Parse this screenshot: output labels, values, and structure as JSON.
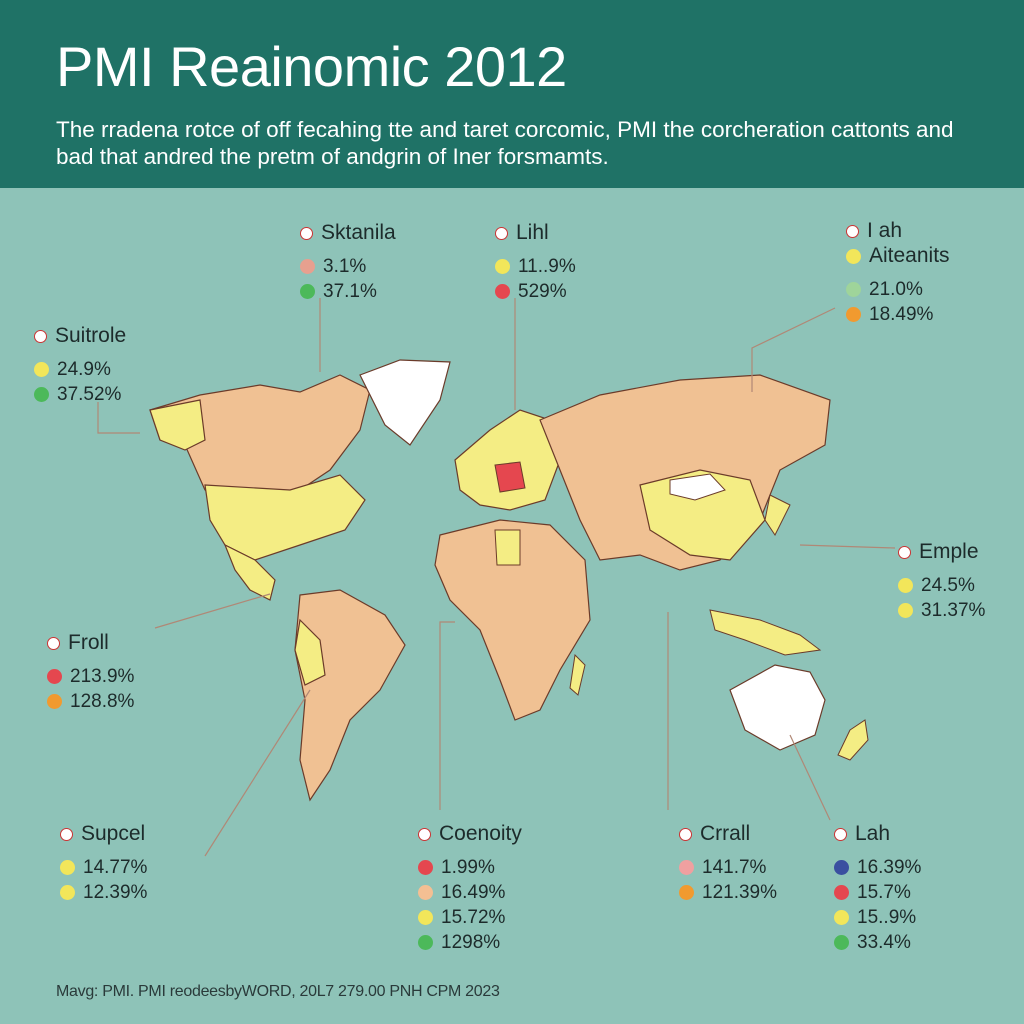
{
  "header": {
    "title": "PMI Reainomic 2012",
    "subtitle": "The rradena rotce of off fecahing tte and taret corcomic, PMI the corcheration cattonts and bad that andred the pretm of andgrin of Iner forsmamts."
  },
  "colors": {
    "yellow": "#f2e65a",
    "green": "#4cb95a",
    "red": "#e5474f",
    "orange": "#f19a2f",
    "peach": "#f4bf93",
    "land_yellow": "#f4ed84",
    "land_peach": "#f0c193",
    "land_white": "#ffffff",
    "ocean": "#8ec3b8",
    "header_bg": "#1f7266"
  },
  "callouts": [
    {
      "name": "Sktanila",
      "rows": [
        {
          "value": "3.1%",
          "color": "#e7a08f"
        },
        {
          "value": "37.1%",
          "color": "#4cb95a"
        }
      ]
    },
    {
      "name": "Lihl",
      "rows": [
        {
          "value": "11..9%",
          "color": "#f2e65a"
        },
        {
          "value": "529%",
          "color": "#e5474f"
        }
      ]
    },
    {
      "name": "I ah",
      "rows": []
    },
    {
      "name": "Aiteanits",
      "rows": [
        {
          "value": "21.0%",
          "color": "#9fd49a"
        },
        {
          "value": "18.49%",
          "color": "#f19a2f"
        }
      ]
    },
    {
      "name": "Suitrole",
      "rows": [
        {
          "value": "24.9%",
          "color": "#f2e65a"
        },
        {
          "value": "37.52%",
          "color": "#4cb95a"
        }
      ]
    },
    {
      "name": "Emple",
      "rows": [
        {
          "value": "24.5%",
          "color": "#f2e65a"
        },
        {
          "value": "31.37%",
          "color": "#f2e65a"
        }
      ]
    },
    {
      "name": "Froll",
      "rows": [
        {
          "value": "213.9%",
          "color": "#e5474f"
        },
        {
          "value": "128.8%",
          "color": "#f19a2f"
        }
      ]
    },
    {
      "name": "Supcel",
      "rows": [
        {
          "value": "14.77%",
          "color": "#f2e65a"
        },
        {
          "value": "12.39%",
          "color": "#f2e65a"
        }
      ]
    },
    {
      "name": "Coenoity",
      "rows": [
        {
          "value": "1.99%",
          "color": "#e5474f"
        },
        {
          "value": "16.49%",
          "color": "#f4bf93"
        },
        {
          "value": "15.72%",
          "color": "#f2e65a"
        },
        {
          "value": "1298%",
          "color": "#4cb95a"
        }
      ]
    },
    {
      "name": "Crrall",
      "rows": [
        {
          "value": "141.7%",
          "color": "#f0a0a0"
        },
        {
          "value": "121.39%",
          "color": "#f19a2f"
        }
      ]
    },
    {
      "name": "Lah",
      "rows": [
        {
          "value": "16.39%",
          "color": "#3a4fa0"
        },
        {
          "value": "15.7%",
          "color": "#e5474f"
        },
        {
          "value": "15..9%",
          "color": "#f2e65a"
        },
        {
          "value": "33.4%",
          "color": "#4cb95a"
        }
      ]
    }
  ],
  "footer": {
    "source": "Mavg: PMI. PMI reodeesbyWORD, 20L7 279.00 PNH CPM 2023"
  }
}
